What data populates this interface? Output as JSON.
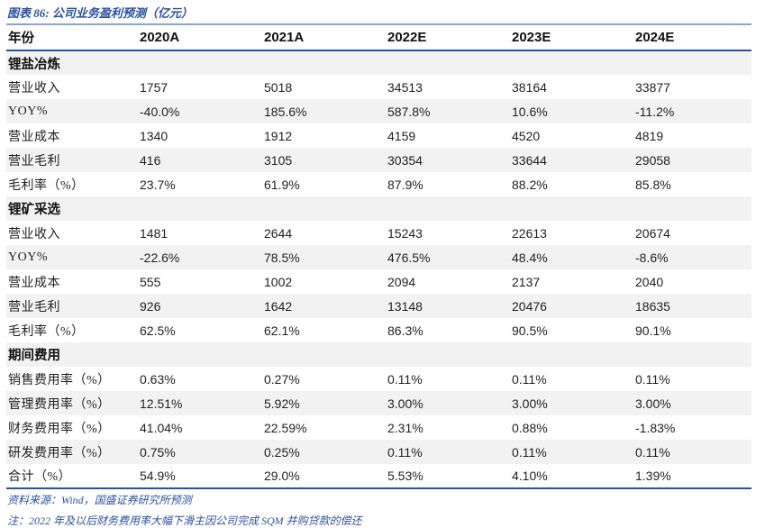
{
  "figure": {
    "title": "图表 86: 公司业务盈利预测（亿元）"
  },
  "table": {
    "year_header": "年份",
    "columns": [
      "2020A",
      "2021A",
      "2022E",
      "2023E",
      "2024E"
    ],
    "sections": [
      {
        "label": "锂盐冶炼",
        "rows": [
          {
            "label": "营业收入",
            "values": [
              "1757",
              "5018",
              "34513",
              "38164",
              "33877"
            ]
          },
          {
            "label": "YOY%",
            "values": [
              "-40.0%",
              "185.6%",
              "587.8%",
              "10.6%",
              "-11.2%"
            ]
          },
          {
            "label": "营业成本",
            "values": [
              "1340",
              "1912",
              "4159",
              "4520",
              "4819"
            ]
          },
          {
            "label": "营业毛利",
            "values": [
              "416",
              "3105",
              "30354",
              "33644",
              "29058"
            ]
          },
          {
            "label": "毛利率（%）",
            "values": [
              "23.7%",
              "61.9%",
              "87.9%",
              "88.2%",
              "85.8%"
            ]
          }
        ]
      },
      {
        "label": "锂矿采选",
        "rows": [
          {
            "label": "营业收入",
            "values": [
              "1481",
              "2644",
              "15243",
              "22613",
              "20674"
            ]
          },
          {
            "label": "YOY%",
            "values": [
              "-22.6%",
              "78.5%",
              "476.5%",
              "48.4%",
              "-8.6%"
            ]
          },
          {
            "label": "营业成本",
            "values": [
              "555",
              "1002",
              "2094",
              "2137",
              "2040"
            ]
          },
          {
            "label": "营业毛利",
            "values": [
              "926",
              "1642",
              "13148",
              "20476",
              "18635"
            ]
          },
          {
            "label": "毛利率（%）",
            "values": [
              "62.5%",
              "62.1%",
              "86.3%",
              "90.5%",
              "90.1%"
            ]
          }
        ]
      },
      {
        "label": "期间费用",
        "rows": [
          {
            "label": "销售费用率（%）",
            "values": [
              "0.63%",
              "0.27%",
              "0.11%",
              "0.11%",
              "0.11%"
            ]
          },
          {
            "label": "管理费用率（%）",
            "values": [
              "12.51%",
              "5.92%",
              "3.00%",
              "3.00%",
              "3.00%"
            ]
          },
          {
            "label": "财务费用率（%）",
            "values": [
              "41.04%",
              "22.59%",
              "2.31%",
              "0.88%",
              "-1.83%"
            ]
          },
          {
            "label": "研发费用率（%）",
            "values": [
              "0.75%",
              "0.25%",
              "0.11%",
              "0.11%",
              "0.11%"
            ]
          },
          {
            "label": "合计（%）",
            "values": [
              "54.9%",
              "29.0%",
              "5.53%",
              "4.10%",
              "1.39%"
            ]
          }
        ]
      }
    ]
  },
  "footer": {
    "source": "资料来源：Wind，国盛证券研究所预测"
  },
  "note": {
    "text": "注：2022 年及以后财务费用率大幅下滑主因公司完成 SQM 并购贷款的偿还"
  },
  "colors": {
    "accent_blue": "#2a52a2",
    "light_rule_blue": "#8aa4cf",
    "row_shade_gray": "#f2f2f2",
    "title_blue": "#2b50a0",
    "body_text": "#1f1f1f"
  }
}
